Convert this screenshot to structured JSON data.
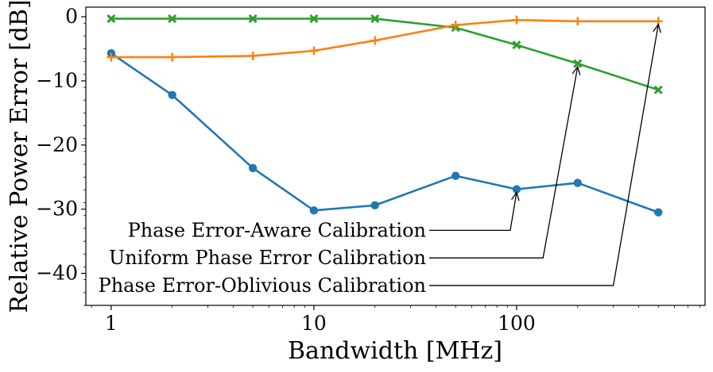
{
  "chart_data": {
    "type": "line",
    "title": "",
    "xlabel": "Bandwidth [MHz]",
    "ylabel": "Relative Power Error [dB]",
    "xscale": "log",
    "xlim": [
      0.75,
      850
    ],
    "ylim": [
      -45,
      1.5
    ],
    "grid": false,
    "x": [
      1,
      2,
      5,
      10,
      20,
      50,
      100,
      200,
      500
    ],
    "xticks": [
      1,
      10,
      100
    ],
    "xtick_labels": [
      "1",
      "10",
      "100"
    ],
    "yticks": [
      0,
      -10,
      -20,
      -30,
      -40
    ],
    "ytick_labels": [
      "0",
      "−10",
      "−20",
      "−30",
      "−40"
    ],
    "series": [
      {
        "name": "Phase Error-Aware Calibration",
        "color": "#1f77b4",
        "marker": "circle",
        "values": [
          -5.7,
          -12.2,
          -23.6,
          -30.2,
          -29.4,
          -24.8,
          -26.9,
          -25.9,
          -30.5
        ]
      },
      {
        "name": "Uniform Phase Error Calibration",
        "color": "#2ca02c",
        "marker": "x",
        "values": [
          -0.3,
          -0.3,
          -0.3,
          -0.3,
          -0.3,
          -1.7,
          -4.4,
          -7.3,
          -11.4
        ]
      },
      {
        "name": "Phase Error-Oblivious Calibration",
        "color": "#ff7f0e",
        "marker": "plus",
        "values": [
          -6.3,
          -6.3,
          -6.1,
          -5.3,
          -3.7,
          -1.3,
          -0.5,
          -0.7,
          -0.7
        ]
      }
    ],
    "annotations": [
      {
        "text": "Phase Error-Aware Calibration",
        "target_x": 100,
        "target_y": -26.9,
        "text_y": -33.3,
        "elbow_x": 93
      },
      {
        "text": "Uniform Phase Error Calibration",
        "target_x": 200,
        "target_y": -7.3,
        "text_y": -37.6,
        "elbow_x": 135
      },
      {
        "text": "Phase Error-Oblivious Calibration",
        "target_x": 500,
        "target_y": -0.7,
        "text_y": -41.9,
        "elbow_x": 300
      }
    ]
  }
}
